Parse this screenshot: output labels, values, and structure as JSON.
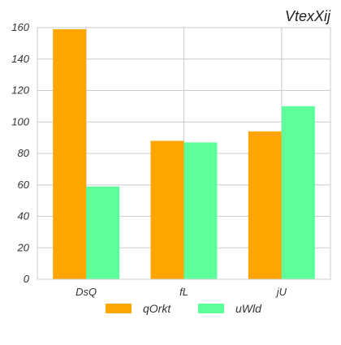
{
  "chart_data": {
    "type": "bar",
    "title": "VtexXij",
    "xlabel": "",
    "ylabel": "",
    "categories": [
      "DsQ",
      "fL",
      "jU"
    ],
    "series": [
      {
        "name": "qOrkt",
        "values": [
          159,
          88,
          94
        ],
        "color": "#FFA500"
      },
      {
        "name": "uWld",
        "values": [
          59,
          87,
          110
        ],
        "color": "#5CFF9A"
      }
    ],
    "ylim": [
      0,
      160
    ],
    "yticks": [
      0,
      20,
      40,
      60,
      80,
      100,
      120,
      140,
      160
    ],
    "grid": true,
    "legend_position": "bottom"
  }
}
